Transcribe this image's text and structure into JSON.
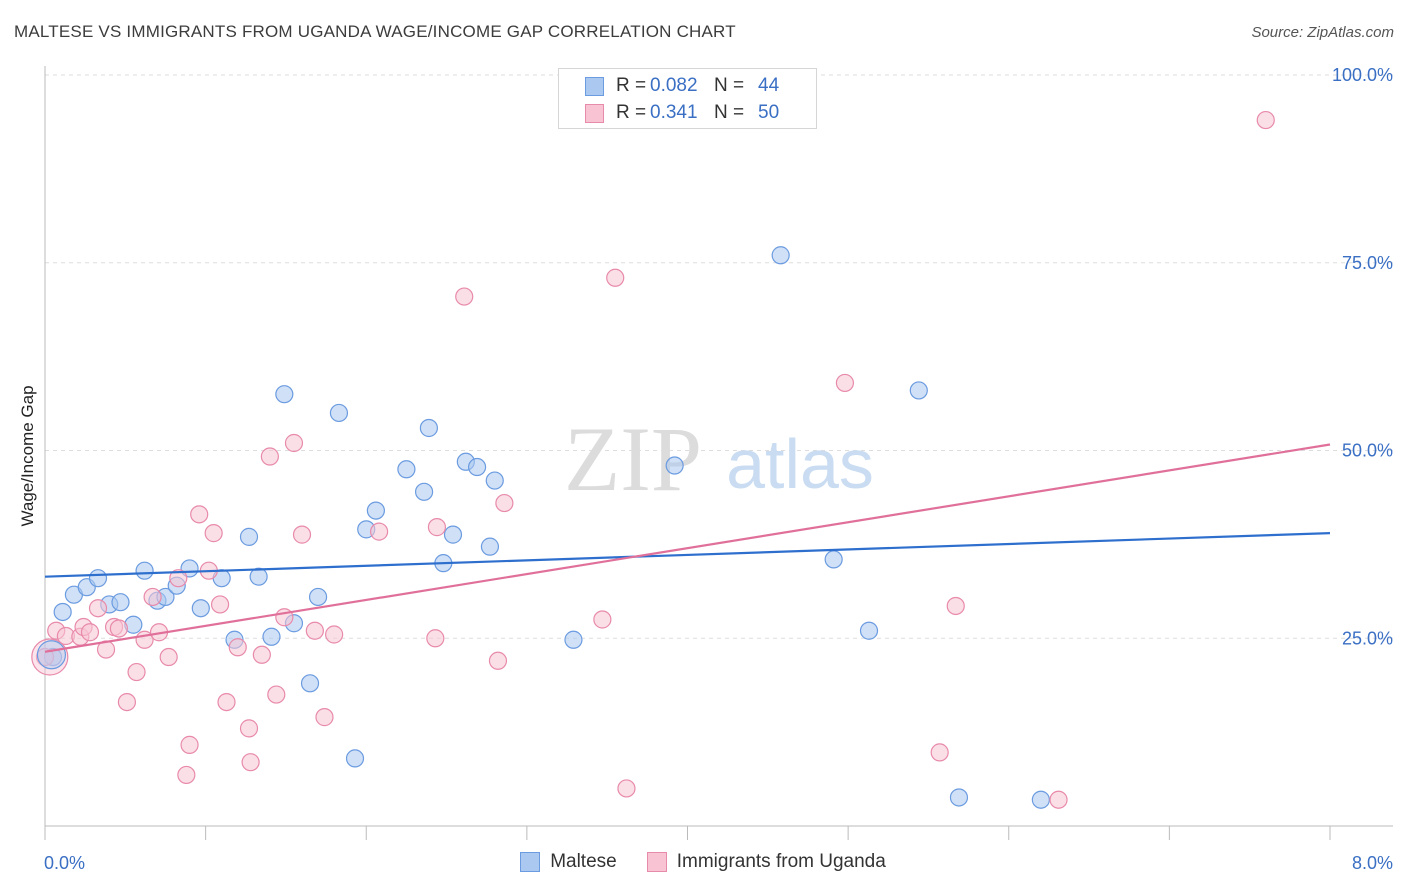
{
  "title": "MALTESE VS IMMIGRANTS FROM UGANDA WAGE/INCOME GAP CORRELATION CHART",
  "source": "Source: ZipAtlas.com",
  "watermark": {
    "left": "ZIP",
    "right": "atlas"
  },
  "legend": {
    "rows": [
      {
        "r_label": "R =",
        "r_value": "0.082",
        "n_label": "N =",
        "n_value": "44",
        "color": "#aac8f0",
        "border": "#6b9be0"
      },
      {
        "r_label": "R =",
        "r_value": "0.341",
        "n_label": "N =",
        "n_value": "50",
        "color": "#f8c4d4",
        "border": "#e88aaa"
      }
    ]
  },
  "bottom_legend": [
    {
      "label": "Maltese",
      "color": "#aac8f0",
      "border": "#6b9be0"
    },
    {
      "label": "Immigrants from Uganda",
      "color": "#f8c4d4",
      "border": "#e88aaa"
    }
  ],
  "chart_data": {
    "type": "scatter",
    "xlabel": "",
    "ylabel": "Wage/Income Gap",
    "xlim": [
      0,
      8
    ],
    "ylim": [
      0,
      102
    ],
    "x_tick_labels": [
      {
        "value": 0,
        "label": "0.0%"
      },
      {
        "value": 8,
        "label": "8.0%"
      }
    ],
    "y_tick_labels": [
      {
        "value": 25,
        "label": "25.0%"
      },
      {
        "value": 50,
        "label": "50.0%"
      },
      {
        "value": 75,
        "label": "75.0%"
      },
      {
        "value": 100,
        "label": "100.0%"
      }
    ],
    "grid": true,
    "legend_position": "top-center",
    "series": [
      {
        "name": "Maltese",
        "color": "#6b9be0",
        "fill": "#aac8f0",
        "trend": {
          "x": [
            0,
            8
          ],
          "y": [
            33.2,
            39.0
          ],
          "color": "#2e6fce"
        },
        "points": [
          {
            "x": 0.05,
            "y": 22.5
          },
          {
            "x": 0.11,
            "y": 28.5
          },
          {
            "x": 0.18,
            "y": 30.8
          },
          {
            "x": 0.26,
            "y": 31.8
          },
          {
            "x": 0.33,
            "y": 33.0
          },
          {
            "x": 0.4,
            "y": 29.5
          },
          {
            "x": 0.47,
            "y": 29.8
          },
          {
            "x": 0.55,
            "y": 26.8
          },
          {
            "x": 0.62,
            "y": 34.0
          },
          {
            "x": 0.7,
            "y": 30.0
          },
          {
            "x": 0.75,
            "y": 30.5
          },
          {
            "x": 0.82,
            "y": 32.0
          },
          {
            "x": 0.9,
            "y": 34.3
          },
          {
            "x": 0.97,
            "y": 29.0
          },
          {
            "x": 1.1,
            "y": 33.0
          },
          {
            "x": 1.18,
            "y": 24.8
          },
          {
            "x": 1.27,
            "y": 38.5
          },
          {
            "x": 1.33,
            "y": 33.2
          },
          {
            "x": 1.41,
            "y": 25.2
          },
          {
            "x": 1.49,
            "y": 57.5
          },
          {
            "x": 1.55,
            "y": 27.0
          },
          {
            "x": 1.65,
            "y": 19.0
          },
          {
            "x": 1.7,
            "y": 30.5
          },
          {
            "x": 1.83,
            "y": 55.0
          },
          {
            "x": 1.93,
            "y": 9.0
          },
          {
            "x": 2.0,
            "y": 39.5
          },
          {
            "x": 2.06,
            "y": 42.0
          },
          {
            "x": 2.25,
            "y": 47.5
          },
          {
            "x": 2.36,
            "y": 44.5
          },
          {
            "x": 2.39,
            "y": 53.0
          },
          {
            "x": 2.48,
            "y": 35.0
          },
          {
            "x": 2.54,
            "y": 38.8
          },
          {
            "x": 2.62,
            "y": 48.5
          },
          {
            "x": 2.69,
            "y": 47.8
          },
          {
            "x": 2.77,
            "y": 37.2
          },
          {
            "x": 2.8,
            "y": 46.0
          },
          {
            "x": 3.29,
            "y": 24.8
          },
          {
            "x": 3.92,
            "y": 48.0
          },
          {
            "x": 4.58,
            "y": 76.0
          },
          {
            "x": 4.91,
            "y": 35.5
          },
          {
            "x": 5.13,
            "y": 26.0
          },
          {
            "x": 5.44,
            "y": 58.0
          },
          {
            "x": 5.69,
            "y": 3.8
          },
          {
            "x": 6.2,
            "y": 3.5
          }
        ]
      },
      {
        "name": "Immigrants from Uganda",
        "color": "#e88aaa",
        "fill": "#f8c4d4",
        "trend": {
          "x": [
            0,
            8
          ],
          "y": [
            23.2,
            50.8
          ],
          "color": "#e0709a"
        },
        "points": [
          {
            "x": 0.07,
            "y": 26.0
          },
          {
            "x": 0.13,
            "y": 25.3
          },
          {
            "x": 0.22,
            "y": 25.2
          },
          {
            "x": 0.24,
            "y": 26.5
          },
          {
            "x": 0.28,
            "y": 25.8
          },
          {
            "x": 0.33,
            "y": 29.0
          },
          {
            "x": 0.38,
            "y": 23.5
          },
          {
            "x": 0.43,
            "y": 26.5
          },
          {
            "x": 0.46,
            "y": 26.3
          },
          {
            "x": 0.51,
            "y": 16.5
          },
          {
            "x": 0.57,
            "y": 20.5
          },
          {
            "x": 0.62,
            "y": 24.8
          },
          {
            "x": 0.67,
            "y": 30.5
          },
          {
            "x": 0.71,
            "y": 25.8
          },
          {
            "x": 0.77,
            "y": 22.5
          },
          {
            "x": 0.83,
            "y": 33.0
          },
          {
            "x": 0.88,
            "y": 6.8
          },
          {
            "x": 0.9,
            "y": 10.8
          },
          {
            "x": 0.96,
            "y": 41.5
          },
          {
            "x": 1.02,
            "y": 34.0
          },
          {
            "x": 1.05,
            "y": 39.0
          },
          {
            "x": 1.09,
            "y": 29.5
          },
          {
            "x": 1.13,
            "y": 16.5
          },
          {
            "x": 1.2,
            "y": 23.8
          },
          {
            "x": 1.27,
            "y": 13.0
          },
          {
            "x": 1.28,
            "y": 8.5
          },
          {
            "x": 1.35,
            "y": 22.8
          },
          {
            "x": 1.4,
            "y": 49.2
          },
          {
            "x": 1.44,
            "y": 17.5
          },
          {
            "x": 1.49,
            "y": 27.8
          },
          {
            "x": 1.55,
            "y": 51.0
          },
          {
            "x": 1.6,
            "y": 38.8
          },
          {
            "x": 1.68,
            "y": 26.0
          },
          {
            "x": 1.74,
            "y": 14.5
          },
          {
            "x": 1.8,
            "y": 25.5
          },
          {
            "x": 2.08,
            "y": 39.2
          },
          {
            "x": 2.43,
            "y": 25.0
          },
          {
            "x": 2.44,
            "y": 39.8
          },
          {
            "x": 2.61,
            "y": 70.5
          },
          {
            "x": 2.82,
            "y": 22.0
          },
          {
            "x": 2.86,
            "y": 43.0
          },
          {
            "x": 3.47,
            "y": 27.5
          },
          {
            "x": 3.55,
            "y": 73.0
          },
          {
            "x": 3.62,
            "y": 5.0
          },
          {
            "x": 4.98,
            "y": 59.0
          },
          {
            "x": 5.57,
            "y": 9.8
          },
          {
            "x": 5.67,
            "y": 29.3
          },
          {
            "x": 6.31,
            "y": 3.5
          },
          {
            "x": 7.6,
            "y": 94.0
          },
          {
            "x": 0.0,
            "y": 22.5
          }
        ]
      }
    ]
  }
}
